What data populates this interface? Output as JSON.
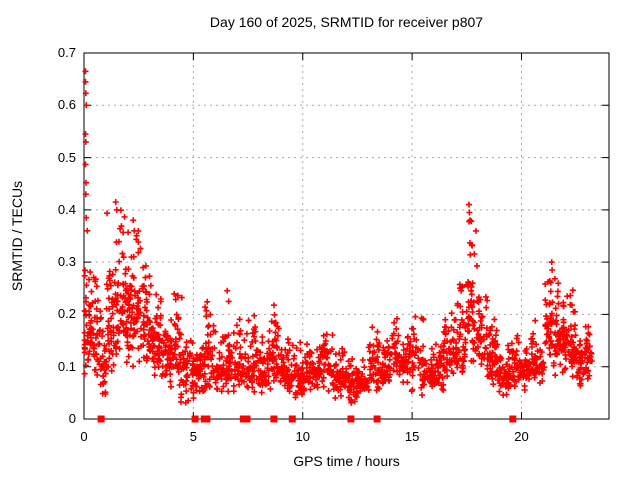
{
  "chart_data": {
    "type": "scatter",
    "title": "Day 160 of 2025, SRMTID for receiver p807",
    "xlabel": "GPS time / hours",
    "ylabel": "SRMTID / TECUs",
    "xlim": [
      0,
      24
    ],
    "ylim": [
      0,
      0.7
    ],
    "xtick_labels": [
      "0",
      "5",
      "10",
      "15",
      "20"
    ],
    "xtick_values": [
      0,
      5,
      10,
      15,
      20
    ],
    "ytick_labels": [
      "0",
      "0.1",
      "0.2",
      "0.3",
      "0.4",
      "0.5",
      "0.6",
      "0.7"
    ],
    "ytick_values": [
      0,
      0.1,
      0.2,
      0.3,
      0.4,
      0.5,
      0.6,
      0.7
    ],
    "grid": "dotted gray at every labeled tick",
    "legend": "none",
    "marker": {
      "shape": "plus",
      "color": "#ff0000",
      "size": 7
    },
    "zero_marker": {
      "shape": "filled-square",
      "color": "#ff0000",
      "size": 7
    },
    "colors": {
      "points": "#ff0000",
      "grid": "#aaaaaa",
      "border": "#000000",
      "text": "#000000",
      "background": "#ffffff"
    },
    "seed": 42,
    "bin_format": [
      "x_start_hours",
      "x_end_hours",
      "point_count",
      "y_min",
      "y_max",
      "y_typical"
    ],
    "density_bins": [
      [
        0.0,
        0.5,
        55,
        0.08,
        0.36,
        0.16
      ],
      [
        0.5,
        1.0,
        42,
        0.04,
        0.27,
        0.12
      ],
      [
        1.0,
        1.5,
        50,
        0.08,
        0.42,
        0.17
      ],
      [
        1.5,
        2.0,
        52,
        0.1,
        0.4,
        0.2
      ],
      [
        2.0,
        2.5,
        55,
        0.1,
        0.38,
        0.21
      ],
      [
        2.5,
        3.0,
        50,
        0.1,
        0.35,
        0.16
      ],
      [
        3.0,
        3.5,
        46,
        0.08,
        0.28,
        0.13
      ],
      [
        3.5,
        4.0,
        44,
        0.07,
        0.22,
        0.12
      ],
      [
        4.0,
        4.5,
        42,
        0.06,
        0.27,
        0.11
      ],
      [
        4.5,
        5.0,
        40,
        0.03,
        0.18,
        0.09
      ],
      [
        5.0,
        5.5,
        40,
        0.05,
        0.2,
        0.1
      ],
      [
        5.5,
        6.0,
        40,
        0.05,
        0.23,
        0.1
      ],
      [
        6.0,
        6.5,
        38,
        0.04,
        0.18,
        0.09
      ],
      [
        6.5,
        7.0,
        40,
        0.05,
        0.25,
        0.1
      ],
      [
        7.0,
        7.5,
        38,
        0.05,
        0.18,
        0.08
      ],
      [
        7.5,
        8.0,
        40,
        0.05,
        0.2,
        0.09
      ],
      [
        8.0,
        8.5,
        40,
        0.05,
        0.18,
        0.08
      ],
      [
        8.5,
        9.0,
        42,
        0.06,
        0.26,
        0.1
      ],
      [
        9.0,
        9.5,
        38,
        0.05,
        0.17,
        0.09
      ],
      [
        9.5,
        10.0,
        36,
        0.04,
        0.15,
        0.08
      ],
      [
        10.0,
        10.5,
        36,
        0.05,
        0.15,
        0.09
      ],
      [
        10.5,
        11.0,
        36,
        0.05,
        0.16,
        0.1
      ],
      [
        11.0,
        11.5,
        36,
        0.05,
        0.18,
        0.1
      ],
      [
        11.5,
        12.0,
        36,
        0.04,
        0.14,
        0.08
      ],
      [
        12.0,
        12.5,
        36,
        0.03,
        0.12,
        0.07
      ],
      [
        12.5,
        13.0,
        36,
        0.04,
        0.13,
        0.07
      ],
      [
        13.0,
        13.5,
        36,
        0.05,
        0.2,
        0.09
      ],
      [
        13.5,
        14.0,
        36,
        0.05,
        0.15,
        0.08
      ],
      [
        14.0,
        14.5,
        36,
        0.06,
        0.2,
        0.11
      ],
      [
        14.5,
        15.0,
        36,
        0.06,
        0.18,
        0.11
      ],
      [
        15.0,
        15.5,
        36,
        0.05,
        0.22,
        0.11
      ],
      [
        15.5,
        16.0,
        36,
        0.04,
        0.15,
        0.08
      ],
      [
        16.0,
        16.5,
        36,
        0.05,
        0.18,
        0.1
      ],
      [
        16.5,
        17.0,
        40,
        0.06,
        0.22,
        0.12
      ],
      [
        17.0,
        17.5,
        44,
        0.08,
        0.3,
        0.14
      ],
      [
        17.5,
        18.0,
        48,
        0.1,
        0.41,
        0.17
      ],
      [
        18.0,
        18.5,
        44,
        0.08,
        0.25,
        0.15
      ],
      [
        18.5,
        19.0,
        40,
        0.05,
        0.2,
        0.11
      ],
      [
        19.0,
        19.5,
        36,
        0.04,
        0.15,
        0.08
      ],
      [
        19.5,
        20.0,
        36,
        0.05,
        0.16,
        0.09
      ],
      [
        20.0,
        20.5,
        36,
        0.05,
        0.18,
        0.1
      ],
      [
        20.5,
        21.0,
        36,
        0.06,
        0.2,
        0.11
      ],
      [
        21.0,
        21.5,
        44,
        0.1,
        0.3,
        0.17
      ],
      [
        21.5,
        22.0,
        48,
        0.08,
        0.28,
        0.16
      ],
      [
        22.0,
        22.5,
        44,
        0.08,
        0.25,
        0.14
      ],
      [
        22.5,
        23.0,
        40,
        0.06,
        0.2,
        0.11
      ],
      [
        23.0,
        23.2,
        20,
        0.07,
        0.21,
        0.13
      ]
    ],
    "outlier_points": [
      [
        0.07,
        0.665
      ],
      [
        0.07,
        0.645
      ],
      [
        0.08,
        0.623
      ],
      [
        0.1,
        0.6
      ],
      [
        0.07,
        0.545
      ],
      [
        0.08,
        0.53
      ],
      [
        0.07,
        0.487
      ],
      [
        0.09,
        0.452
      ],
      [
        0.08,
        0.43
      ],
      [
        0.1,
        0.385
      ],
      [
        0.15,
        0.36
      ],
      [
        1.45,
        0.415
      ],
      [
        1.5,
        0.4
      ],
      [
        2.25,
        0.38
      ],
      [
        2.3,
        0.36
      ],
      [
        17.6,
        0.41
      ],
      [
        17.62,
        0.395
      ],
      [
        17.65,
        0.38
      ],
      [
        21.38,
        0.3
      ],
      [
        21.4,
        0.285
      ]
    ],
    "zero_value_marker_hours": [
      0.78,
      5.08,
      5.5,
      5.62,
      7.28,
      7.45,
      8.68,
      9.52,
      12.2,
      13.4,
      19.6
    ]
  }
}
